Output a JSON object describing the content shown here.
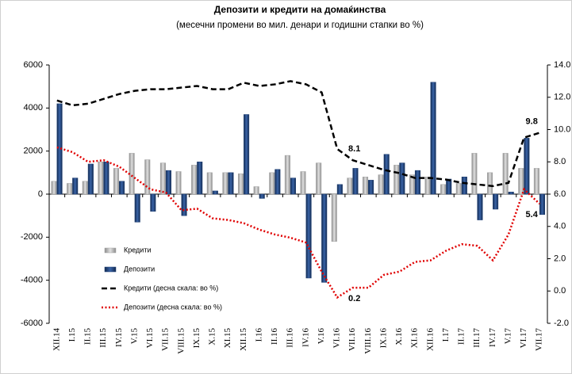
{
  "chart_data": {
    "type": "bar",
    "title": "Депозити и кредити на домаќинства",
    "subtitle": "(месечни промени во мил. денари и годишни стапки во %)",
    "categories": [
      "XII.14",
      "I.15",
      "II.15",
      "III.15",
      "IV.15",
      "V.15",
      "VI.15",
      "VII.15",
      "VIII.15",
      "IX.15",
      "X.15",
      "XI.15",
      "XII.15",
      "I.16",
      "II.16",
      "III.16",
      "IV.16",
      "V.16",
      "VI.16",
      "VII.16",
      "VIII.16",
      "IX.16",
      "X.16",
      "XI.16",
      "XII.16",
      "I.17",
      "II.17",
      "III.17",
      "IV.17",
      "V.17",
      "VI.17",
      "VII.17"
    ],
    "series": [
      {
        "name": "Кредити",
        "type": "bar",
        "color": "#a6a6a6",
        "values": [
          600,
          500,
          600,
          1500,
          1200,
          1900,
          1600,
          1450,
          1050,
          1350,
          1000,
          1000,
          950,
          350,
          1000,
          1800,
          1050,
          1450,
          -2200,
          750,
          800,
          900,
          1350,
          900,
          800,
          450,
          500,
          1900,
          1000,
          1900,
          1200,
          1200
        ]
      },
      {
        "name": "Депозити",
        "type": "bar",
        "color": "#1f3f73",
        "values": [
          4200,
          750,
          1400,
          1500,
          600,
          -1300,
          -800,
          1100,
          -1000,
          1500,
          150,
          1000,
          3700,
          -200,
          1150,
          750,
          -3900,
          -4100,
          450,
          1200,
          650,
          1850,
          1450,
          1100,
          5200,
          700,
          800,
          -1200,
          -700,
          100,
          2600,
          -950
        ]
      },
      {
        "name": "Кредити  (десна скала: во %)",
        "type": "line",
        "axis": "y2",
        "color": "#000000",
        "dash": "dashed",
        "values": [
          11.8,
          11.5,
          11.6,
          11.9,
          12.2,
          12.4,
          12.5,
          12.5,
          12.6,
          12.7,
          12.5,
          12.5,
          12.9,
          12.7,
          12.8,
          13.0,
          12.8,
          12.3,
          8.8,
          8.1,
          7.8,
          7.5,
          7.3,
          7.0,
          7.0,
          6.9,
          6.7,
          6.6,
          6.5,
          6.7,
          9.5,
          9.8
        ],
        "labeled_points": [
          19,
          31
        ]
      },
      {
        "name": "Депозити (десна скала: во %)",
        "type": "line",
        "axis": "y2",
        "color": "#e00000",
        "dash": "dotted",
        "values": [
          8.9,
          8.6,
          8.0,
          8.1,
          7.7,
          7.0,
          6.3,
          6.1,
          5.0,
          5.1,
          4.5,
          4.4,
          4.2,
          3.8,
          3.5,
          3.3,
          3.0,
          1.2,
          -0.4,
          0.2,
          0.2,
          1.0,
          1.2,
          1.8,
          1.9,
          2.5,
          2.9,
          2.8,
          1.9,
          3.5,
          6.3,
          5.4
        ],
        "labeled_points": [
          19,
          31
        ]
      }
    ],
    "ylim": [
      -6000,
      6000
    ],
    "yticks": [
      -6000,
      -4000,
      -2000,
      0,
      2000,
      4000,
      6000
    ],
    "y2lim": [
      -2,
      14
    ],
    "y2ticks": [
      {
        "value": -2,
        "label": "-2.0"
      },
      {
        "value": 0,
        "label": "0.0"
      },
      {
        "value": 2,
        "label": "2.0"
      },
      {
        "value": 4,
        "label": "4.0"
      },
      {
        "value": 6,
        "label": "6.0"
      },
      {
        "value": 8,
        "label": "8.0"
      },
      {
        "value": 10,
        "label": "10.0"
      },
      {
        "value": 12,
        "label": "12.0"
      },
      {
        "value": 14,
        "label": "14.0"
      }
    ],
    "grid": false,
    "legend": "lower-left"
  }
}
